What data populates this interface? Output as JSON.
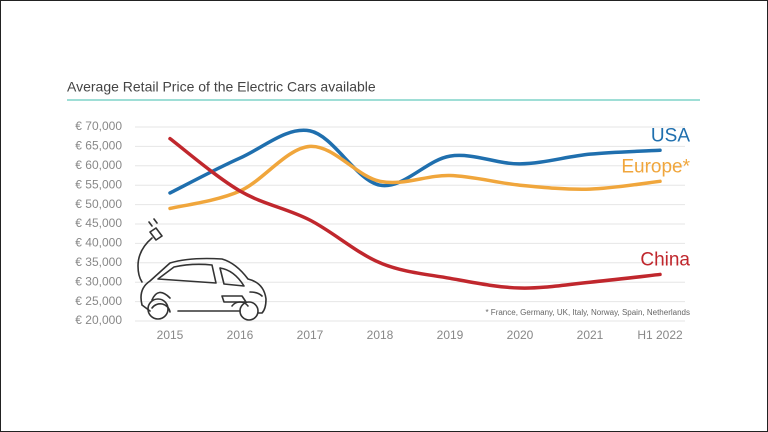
{
  "chart_data": {
    "type": "line",
    "title": "Average Retail Price of the Electric Cars available",
    "note": "* France, Germany, UK, Italy, Norway, Spain, Netherlands",
    "categories": [
      "2015",
      "2016",
      "2017",
      "2018",
      "2019",
      "2020",
      "2021",
      "H1 2022"
    ],
    "series": [
      {
        "name": "USA",
        "color": "#1f6fae",
        "values": [
          53000,
          62000,
          69000,
          55000,
          62500,
          60500,
          63000,
          64000
        ]
      },
      {
        "name": "Europe*",
        "color": "#f0a63c",
        "values": [
          49000,
          53500,
          65000,
          56000,
          57500,
          55000,
          54000,
          56000
        ]
      },
      {
        "name": "China",
        "color": "#c0272d",
        "values": [
          67000,
          53500,
          46000,
          35000,
          31000,
          28500,
          30000,
          32000
        ]
      }
    ],
    "ylim": [
      20000,
      70000
    ],
    "yticks": [
      {
        "value": 20000,
        "label": "€ 20,000"
      },
      {
        "value": 25000,
        "label": "€ 25,000"
      },
      {
        "value": 30000,
        "label": "€ 30,000"
      },
      {
        "value": 35000,
        "label": "€ 35,000"
      },
      {
        "value": 40000,
        "label": "€ 40,000"
      },
      {
        "value": 45000,
        "label": "€ 45,000"
      },
      {
        "value": 50000,
        "label": "€ 50,000"
      },
      {
        "value": 55000,
        "label": "€ 55,000"
      },
      {
        "value": 60000,
        "label": "€ 60,000"
      },
      {
        "value": 65000,
        "label": "€ 65,000"
      },
      {
        "value": 70000,
        "label": "€ 70,000"
      }
    ],
    "grid": true
  }
}
